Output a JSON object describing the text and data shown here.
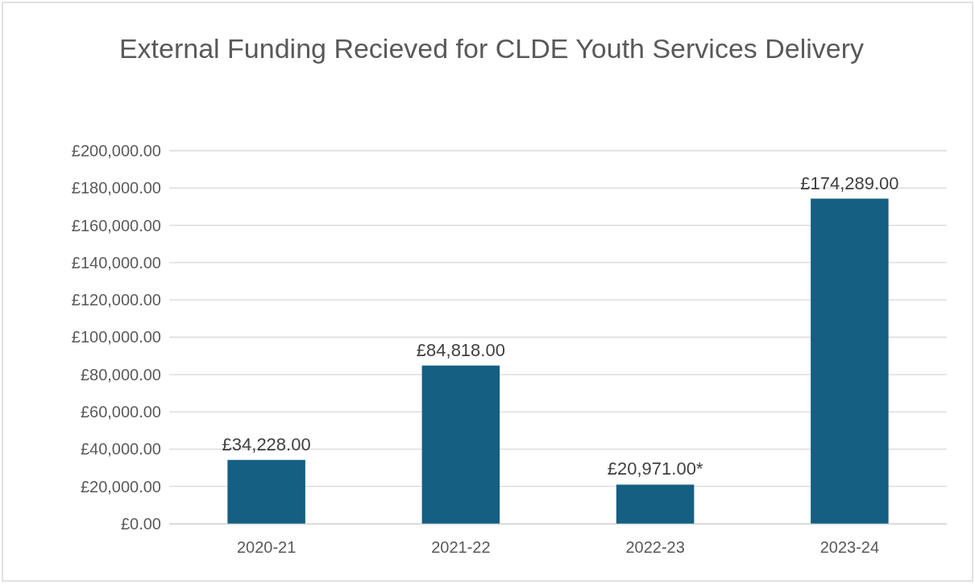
{
  "chart_data": {
    "type": "bar",
    "title": "External Funding Recieved for CLDE Youth Services Delivery",
    "categories": [
      "2020-21",
      "2021-22",
      "2022-23",
      "2023-24"
    ],
    "values": [
      34228,
      84818,
      20971,
      174289
    ],
    "value_labels": [
      "£34,228.00",
      "£84,818.00",
      "£20,971.00*",
      "£174,289.00"
    ],
    "color": "#155f82",
    "ylim": [
      0,
      200000
    ],
    "yticks": [
      {
        "value": 0,
        "label": "£0.00"
      },
      {
        "value": 20000,
        "label": "£20,000.00"
      },
      {
        "value": 40000,
        "label": "£40,000.00"
      },
      {
        "value": 60000,
        "label": "£60,000.00"
      },
      {
        "value": 80000,
        "label": "£80,000.00"
      },
      {
        "value": 100000,
        "label": "£100,000.00"
      },
      {
        "value": 120000,
        "label": "£120,000.00"
      },
      {
        "value": 140000,
        "label": "£140,000.00"
      },
      {
        "value": 160000,
        "label": "£160,000.00"
      },
      {
        "value": 180000,
        "label": "£180,000.00"
      },
      {
        "value": 200000,
        "label": "£200,000.00"
      }
    ],
    "grid": "y"
  }
}
